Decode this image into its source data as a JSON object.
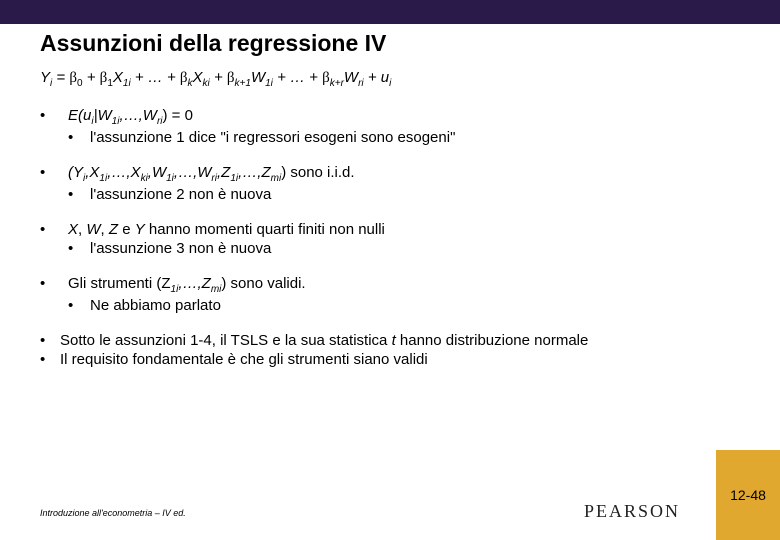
{
  "colors": {
    "top_band": "#2a1a4a",
    "page_box": "#e0a82e",
    "background": "#ffffff",
    "text": "#000000"
  },
  "title": "Assunzioni della regressione IV",
  "equation": {
    "lhs": "Y",
    "lhs_sub": "i",
    "terms": [
      {
        "coef": "β",
        "coef_sub": "0"
      },
      {
        "coef": "β",
        "coef_sub": "1",
        "var": "X",
        "var_sub": "1i"
      },
      {
        "ellipsis": "…"
      },
      {
        "coef": "β",
        "coef_sub": "k",
        "var": "X",
        "var_sub": "ki"
      },
      {
        "coef": "β",
        "coef_sub": "k+1",
        "var": "W",
        "var_sub": "1i"
      },
      {
        "ellipsis": "…"
      },
      {
        "coef": "β",
        "coef_sub": "k+r",
        "var": "W",
        "var_sub": "ri"
      },
      {
        "var": "u",
        "var_sub": "i"
      }
    ]
  },
  "bullets": [
    {
      "main_pre": "E(u",
      "main_sub1": "i",
      "main_mid1": "|W",
      "main_sub2": "1i",
      "main_mid2": ",…,W",
      "main_sub3": "ri",
      "main_post": ") = 0",
      "sub": "l'assunzione 1 dice \"i regressori esogeni sono esogeni\""
    },
    {
      "main_pre": "(Y",
      "main_sub1": "i",
      "main_mid1": ",X",
      "main_sub2": "1i",
      "main_mid2": ",…,X",
      "main_sub3": "ki",
      "main_mid3": ",W",
      "main_sub4": "1i",
      "main_mid4": ",…,W",
      "main_sub5": "ri",
      "main_mid5": ",Z",
      "main_sub6": "1i",
      "main_mid6": ",…,Z",
      "main_sub7": "mi",
      "main_post": ") sono i.i.d.",
      "sub": "l'assunzione 2 non è nuova"
    },
    {
      "main_plain": "X, W, Z e Y hanno momenti quarti finiti non nulli",
      "sub": "l'assunzione 3 non è nuova"
    },
    {
      "main_pre": "Gli strumenti (Z",
      "main_sub1": "1i",
      "main_mid1": ",…,Z",
      "main_sub2": "mi",
      "main_post": ") sono validi.",
      "sub": "Ne abbiamo parlato"
    }
  ],
  "lower": [
    "Sotto le assunzioni 1-4, il TSLS e la sua statistica t hanno distribuzione normale",
    "Il requisito fondamentale è che gli strumenti siano validi"
  ],
  "footer_source": "Introduzione all'econometria – IV ed.",
  "publisher": "PEARSON",
  "page_number": "12-48"
}
